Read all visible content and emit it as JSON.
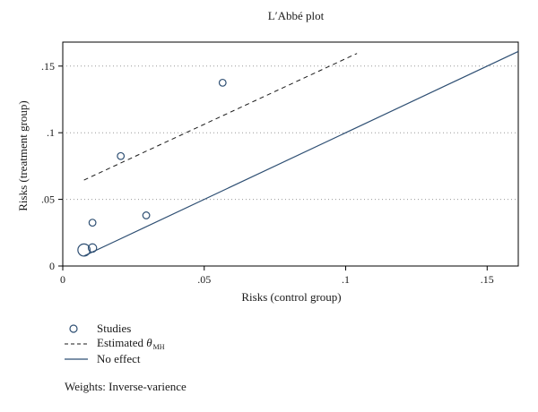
{
  "chart_data": {
    "type": "scatter",
    "title": "L′Abbé plot",
    "xlabel": "Risks (control group)",
    "ylabel": "Risks (treatment group)",
    "xlim": [
      0,
      0.161
    ],
    "ylim": [
      0,
      0.168
    ],
    "xticks": [
      {
        "value": 0,
        "label": "0"
      },
      {
        "value": 0.05,
        "label": ".05"
      },
      {
        "value": 0.1,
        "label": ".1"
      },
      {
        "value": 0.15,
        "label": ".15"
      }
    ],
    "yticks": [
      {
        "value": 0,
        "label": "0"
      },
      {
        "value": 0.05,
        "label": ".05"
      },
      {
        "value": 0.1,
        "label": ".1"
      },
      {
        "value": 0.15,
        "label": ".15"
      }
    ],
    "grid": {
      "y": "dotted",
      "x": false
    },
    "studies": {
      "name": "Studies",
      "points": [
        {
          "x": 0.0075,
          "y": 0.012,
          "weight": 3.2
        },
        {
          "x": 0.0105,
          "y": 0.0135,
          "weight": 1.5
        },
        {
          "x": 0.0105,
          "y": 0.0325,
          "weight": 1
        },
        {
          "x": 0.0205,
          "y": 0.0825,
          "weight": 1
        },
        {
          "x": 0.0295,
          "y": 0.038,
          "weight": 1
        },
        {
          "x": 0.0565,
          "y": 0.1375,
          "weight": 1
        }
      ]
    },
    "estimated_line": {
      "name": "Estimated θMH",
      "style": "dashed",
      "x": [
        0.0075,
        0.104
      ],
      "y": [
        0.0645,
        0.1595
      ]
    },
    "no_effect_line": {
      "name": "No effect",
      "style": "solid",
      "x": [
        0.0075,
        0.161
      ],
      "y": [
        0.0075,
        0.161
      ]
    },
    "legend_position": "bottom-left"
  },
  "legend": {
    "studies_label": "Studies",
    "estimated_label": "Estimated",
    "estimated_symbol": "θ",
    "estimated_subscript": "MH",
    "no_effect_label": "No effect"
  },
  "note": "Weights: Inverse-varience",
  "colors": {
    "series": "#2e4f73",
    "grid": "#999999",
    "axis": "#000000"
  }
}
